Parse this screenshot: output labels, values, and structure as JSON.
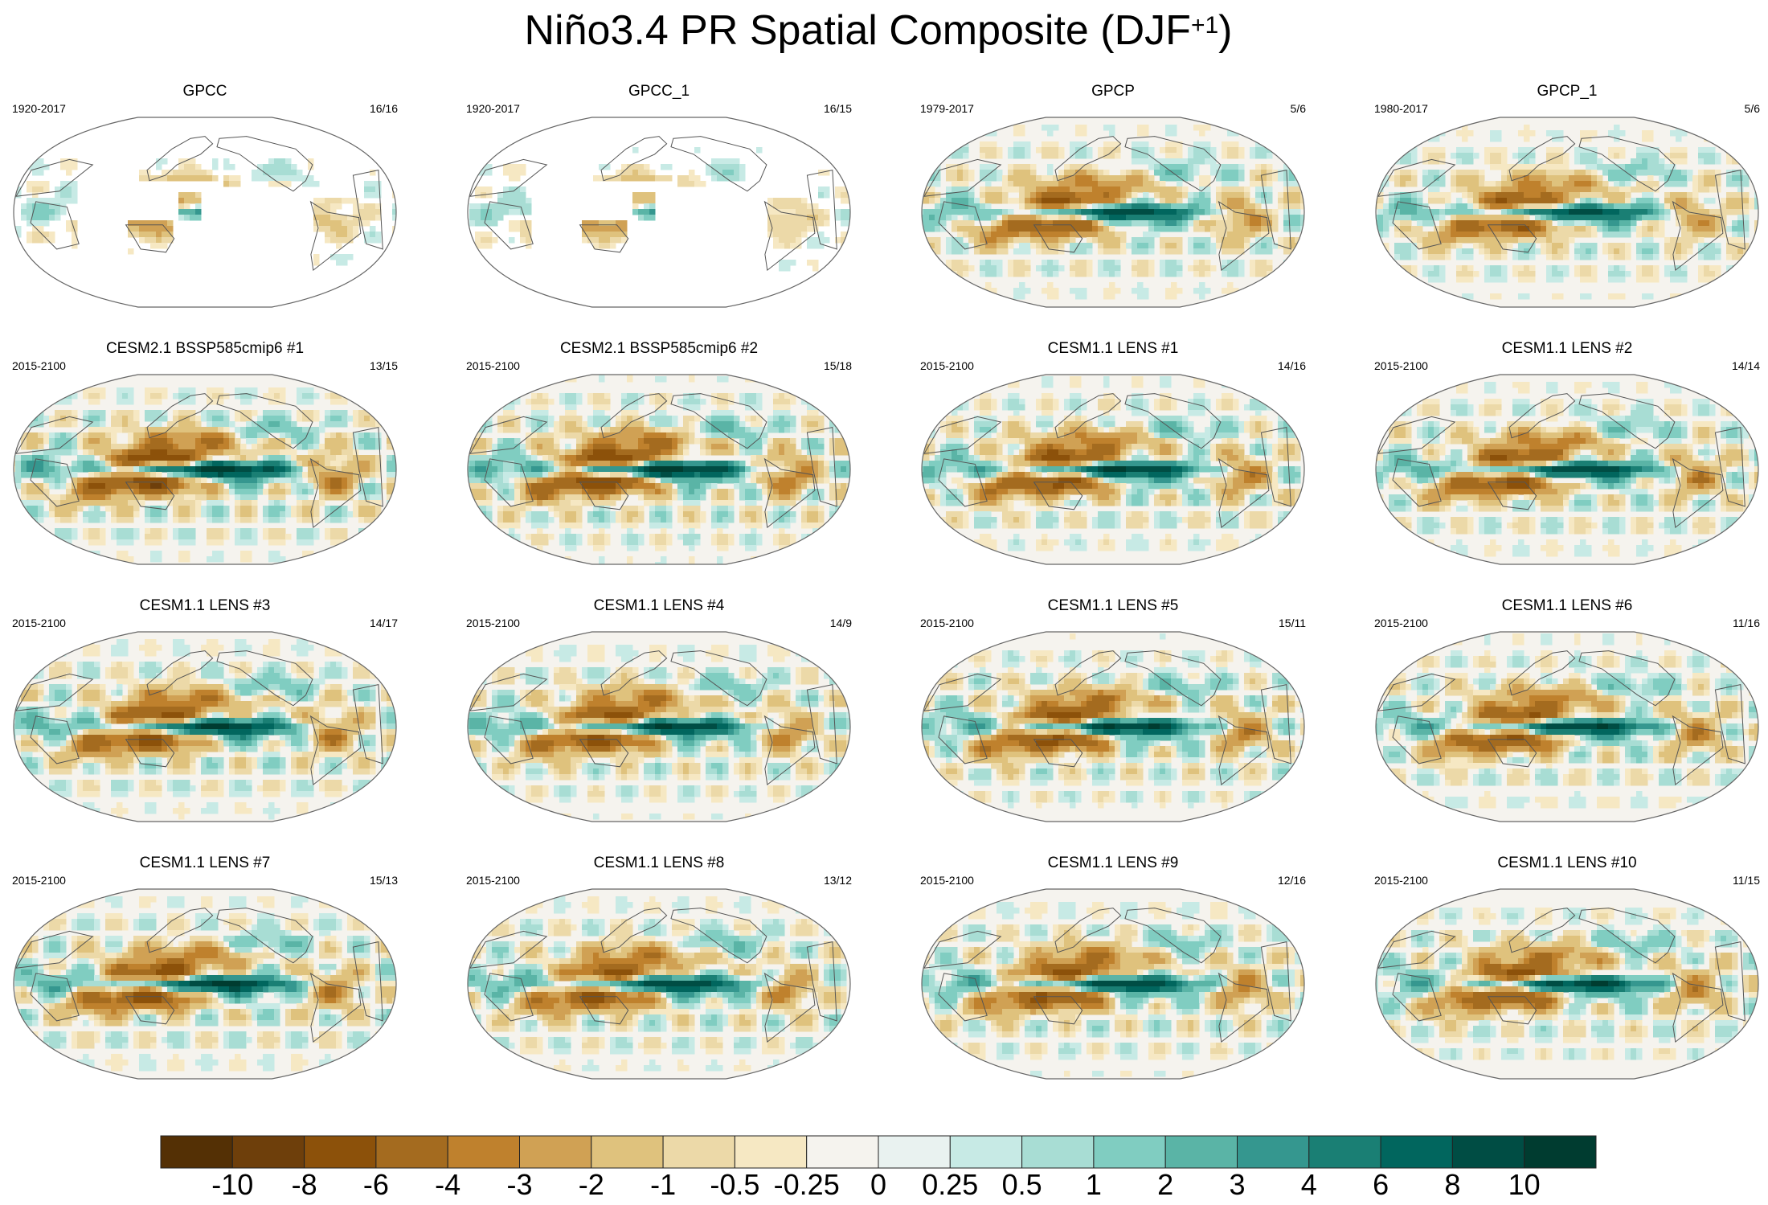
{
  "title": {
    "text": "Niño3.4 PR Spatial Composite (DJF",
    "superscript": "+1",
    "close": ")"
  },
  "chart_data": {
    "type": "heatmap",
    "projection": "Robinson, Pacific-centered",
    "variable": "PR composite",
    "season": "DJF+1",
    "layout": {
      "rows": 4,
      "cols": 4
    },
    "colorbar": {
      "levels": [
        "-10",
        "-8",
        "-6",
        "-4",
        "-3",
        "-2",
        "-1",
        "-0.5",
        "-0.25",
        "0",
        "0.25",
        "0.5",
        "1",
        "2",
        "3",
        "4",
        "6",
        "8",
        "10"
      ],
      "level_values": [
        -10,
        -8,
        -6,
        -4,
        -3,
        -2,
        -1,
        -0.5,
        -0.25,
        0,
        0.25,
        0.5,
        1,
        2,
        3,
        4,
        6,
        8,
        10
      ],
      "colors": [
        "#543005",
        "#6e3f0b",
        "#8c510a",
        "#a46b1f",
        "#bf812d",
        "#d0a154",
        "#dfc27d",
        "#ecd9a8",
        "#f6e8c3",
        "#f5f3ee",
        "#e9f2f0",
        "#c7eae5",
        "#a8ddd4",
        "#80cdc1",
        "#5ab4a6",
        "#35978f",
        "#1a7f74",
        "#01665e",
        "#004d44",
        "#003c30"
      ]
    },
    "panels": [
      {
        "title": "GPCC",
        "period": "1920-2017",
        "count": "16/16",
        "coverage": "land",
        "pattern": 0.15
      },
      {
        "title": "GPCC_1",
        "period": "1920-2017",
        "count": "16/15",
        "coverage": "land",
        "pattern": 0.13
      },
      {
        "title": "GPCP",
        "period": "1979-2017",
        "count": "5/6",
        "coverage": "global",
        "pattern": 0.8
      },
      {
        "title": "GPCP_1",
        "period": "1980-2017",
        "count": "5/6",
        "coverage": "global",
        "pattern": 0.75
      },
      {
        "title": "CESM2.1 BSSP585cmip6 #1",
        "period": "2015-2100",
        "count": "13/15",
        "coverage": "global",
        "pattern": 1.0
      },
      {
        "title": "CESM2.1 BSSP585cmip6 #2",
        "period": "2015-2100",
        "count": "15/18",
        "coverage": "global",
        "pattern": 1.0
      },
      {
        "title": "CESM1.1 LENS #1",
        "period": "2015-2100",
        "count": "14/16",
        "coverage": "global",
        "pattern": 0.9
      },
      {
        "title": "CESM1.1 LENS #2",
        "period": "2015-2100",
        "count": "14/14",
        "coverage": "global",
        "pattern": 0.85
      },
      {
        "title": "CESM1.1 LENS #3",
        "period": "2015-2100",
        "count": "14/17",
        "coverage": "global",
        "pattern": 0.9
      },
      {
        "title": "CESM1.1 LENS #4",
        "period": "2015-2100",
        "count": "14/9",
        "coverage": "global",
        "pattern": 0.85
      },
      {
        "title": "CESM1.1 LENS #5",
        "period": "2015-2100",
        "count": "15/11",
        "coverage": "global",
        "pattern": 0.9
      },
      {
        "title": "CESM1.1 LENS #6",
        "period": "2015-2100",
        "count": "11/16",
        "coverage": "global",
        "pattern": 0.85
      },
      {
        "title": "CESM1.1 LENS #7",
        "period": "2015-2100",
        "count": "15/13",
        "coverage": "global",
        "pattern": 0.9
      },
      {
        "title": "CESM1.1 LENS #8",
        "period": "2015-2100",
        "count": "13/12",
        "coverage": "global",
        "pattern": 0.85
      },
      {
        "title": "CESM1.1 LENS #9",
        "period": "2015-2100",
        "count": "12/16",
        "coverage": "global",
        "pattern": 0.85
      },
      {
        "title": "CESM1.1 LENS #10",
        "period": "2015-2100",
        "count": "11/15",
        "coverage": "global",
        "pattern": 0.85
      }
    ]
  }
}
